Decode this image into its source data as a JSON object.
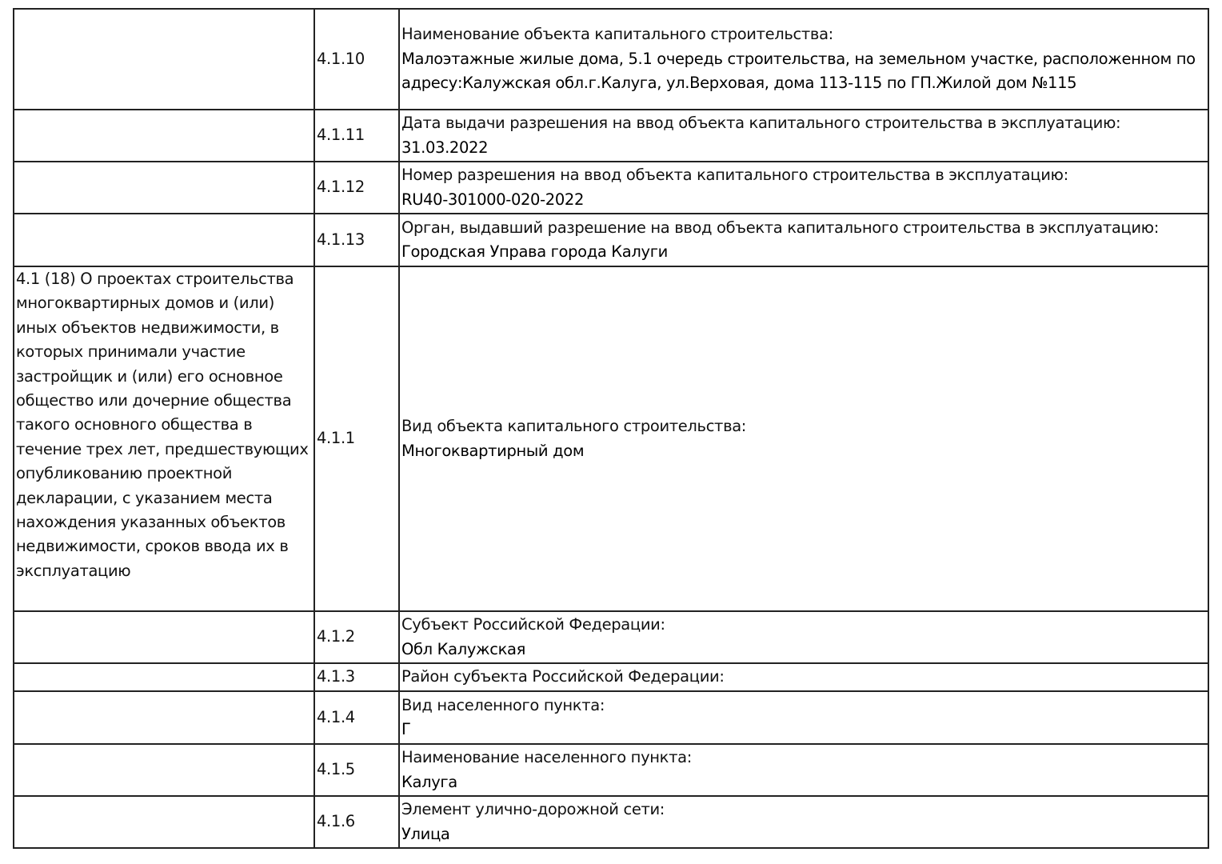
{
  "rows": [
    {
      "section": "",
      "code": "4.1.10",
      "label": "Наименование объекта капитального строительства:",
      "value": "Малоэтажные жилые дома, 5.1 очередь строительства, на земельном участке, расположенном по адресу:Калужская обл.г.Калуга, ул.Верховая, дома 113-115 по ГП.Жилой дом №115"
    },
    {
      "section": "",
      "code": "4.1.11",
      "label": "Дата выдачи разрешения на ввод объекта капитального строительства в эксплуатацию:",
      "value": "31.03.2022"
    },
    {
      "section": "",
      "code": "4.1.12",
      "label": "Номер разрешения на ввод объекта капитального строительства в эксплуатацию:",
      "value": "RU40-301000-020-2022"
    },
    {
      "section": "",
      "code": "4.1.13",
      "label": "Орган, выдавший разрешение на ввод объекта капитального строительства в эксплуатацию:",
      "value": "Городская Управа города Калуги"
    },
    {
      "section": "4.1 (18) О проектах строительства многоквартирных домов и (или) иных объектов недвижимости, в которых принимали участие застройщик и (или) его основное общество или дочерние общества такого основного общества в течение трех лет, предшествующих опубликованию проектной декларации, с указанием места нахождения указанных объектов недвижимости, сроков ввода их в эксплуатацию",
      "code": "4.1.1",
      "label": "Вид объекта капитального строительства:",
      "value": "Многоквартирный дом"
    },
    {
      "section": "",
      "code": "4.1.2",
      "label": "Субъект Российской Федерации:",
      "value": "Обл Калужская"
    },
    {
      "section": "",
      "code": "4.1.3",
      "label": "Район субъекта Российской Федерации:",
      "value": ""
    },
    {
      "section": "",
      "code": "4.1.4",
      "label": "Вид населенного пункта:",
      "value": "Г"
    },
    {
      "section": "",
      "code": "4.1.5",
      "label": "Наименование населенного пункта:",
      "value": "Калуга"
    },
    {
      "section": "",
      "code": "4.1.6",
      "label": "Элемент улично-дорожной сети:",
      "value": "Улица"
    }
  ]
}
